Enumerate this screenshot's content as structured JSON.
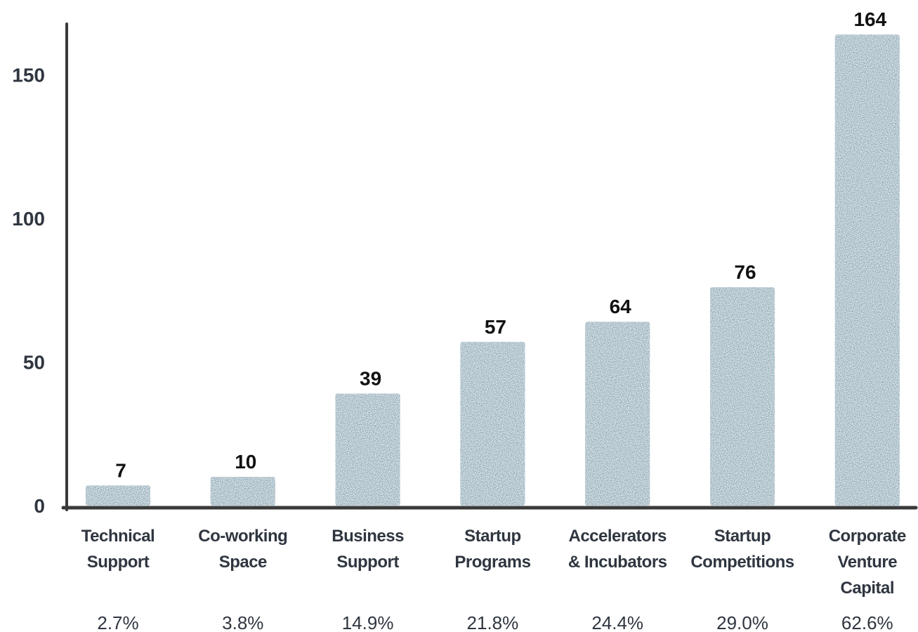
{
  "colors": {
    "bar": "#5b8fa3",
    "axis": "#3a3a3a",
    "text": "#2f3640",
    "value_label": "#111111"
  },
  "chart_data": {
    "type": "bar",
    "title": "",
    "xlabel": "",
    "ylabel": "",
    "ylim": [
      0,
      164
    ],
    "yticks": [
      0,
      50,
      100,
      150
    ],
    "grid": false,
    "categories": [
      [
        "Technical",
        "Support"
      ],
      [
        "Co-working",
        "Space"
      ],
      [
        "Business",
        "Support"
      ],
      [
        "Startup",
        "Programs"
      ],
      [
        "Accelerators",
        "& Incubators"
      ],
      [
        "Startup",
        "Competitions"
      ],
      [
        "Corporate",
        "Venture",
        "Capital"
      ]
    ],
    "values": [
      7,
      10,
      39,
      57,
      64,
      76,
      164
    ],
    "percentages": [
      "2.7%",
      "3.8%",
      "14.9%",
      "21.8%",
      "24.4%",
      "29.0%",
      "62.6%"
    ]
  }
}
